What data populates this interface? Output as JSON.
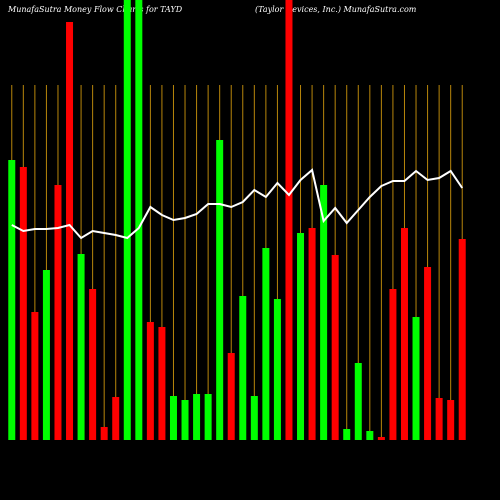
{
  "chart_data": {
    "type": "bar",
    "title": "MunafaSutra Money Flow Charts for TAYD",
    "subtitle": "(Taylor Devices, Inc.) MunafaSutra.com",
    "categories": [
      null,
      null,
      null,
      null,
      null,
      null,
      null,
      null,
      null,
      null,
      null,
      null,
      null,
      null,
      null,
      null,
      null,
      null,
      null,
      null,
      null,
      null,
      null,
      null,
      null,
      null,
      null,
      null,
      null,
      null,
      null,
      null,
      null,
      null,
      null,
      null,
      null,
      null,
      null,
      null
    ],
    "ylim": [
      0,
      440
    ],
    "grid": true,
    "grid_color": "#b8860b",
    "series": [
      {
        "color_up": "#00ff00",
        "color_down": "#ff0000",
        "directions": [
          "up",
          "down",
          "down",
          "up",
          "down",
          "down",
          "up",
          "down",
          "down",
          "down",
          "up",
          "up",
          "down",
          "down",
          "up",
          "up",
          "up",
          "up",
          "up",
          "down",
          "up",
          "up",
          "up",
          "up",
          "down",
          "up",
          "down",
          "up",
          "down",
          "up",
          "up",
          "up",
          "down",
          "down",
          "down",
          "up",
          "down",
          "down",
          "down",
          "down"
        ],
        "values": [
          280,
          273,
          128,
          170,
          255,
          418,
          186,
          151,
          13,
          43,
          440,
          440,
          118,
          113,
          44,
          40,
          46,
          46,
          300,
          87,
          144,
          44,
          192,
          141,
          440,
          207,
          212,
          255,
          185,
          11,
          77,
          9,
          3,
          151,
          212,
          123,
          173,
          42,
          40,
          201
        ]
      },
      {
        "type": "line",
        "color": "#ffffff",
        "values": [
          215,
          209,
          211,
          211,
          212,
          215,
          202,
          209,
          207,
          205,
          202,
          212,
          233,
          225,
          220,
          222,
          226,
          236,
          236,
          233,
          238,
          250,
          243,
          257,
          245,
          260,
          270,
          219,
          232,
          217,
          230,
          243,
          254,
          259,
          259,
          269,
          260,
          262,
          269,
          252
        ]
      }
    ]
  }
}
